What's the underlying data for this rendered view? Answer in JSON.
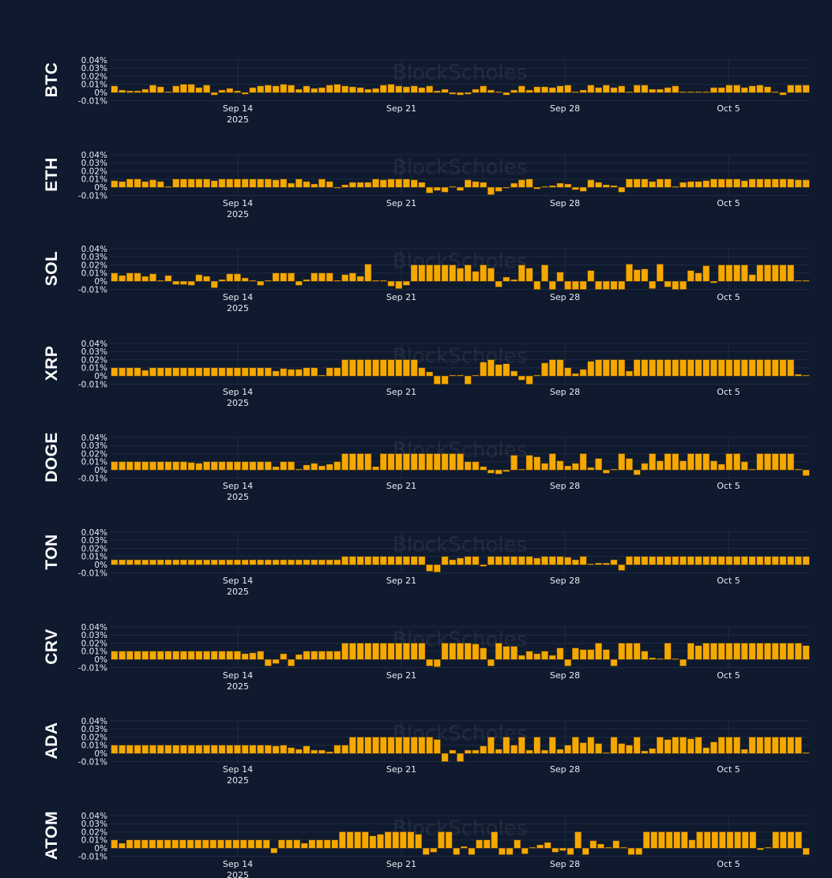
{
  "watermark": "BlockScholes",
  "colors": {
    "background": "#0f1a2e",
    "bar": "#f5a800",
    "bar_edge": "#7a5200",
    "grid": "#1e2b44",
    "text": "#e8ecf3"
  },
  "chart_data": [
    {
      "type": "bar",
      "asset": "BTC",
      "title": "BTC",
      "ylim": [
        -0.01,
        0.04
      ],
      "yticks": [
        "0.04%",
        "0.03%",
        "0.02%",
        "0.01%",
        "0%",
        "-0.01%"
      ],
      "xticks": [
        "Sep 14",
        "Sep 21",
        "Sep 28",
        "Oct 5"
      ],
      "xsub": "2025",
      "values": [
        0.008,
        0.003,
        0.002,
        0.002,
        0.004,
        0.009,
        0.007,
        0.001,
        0.008,
        0.01,
        0.01,
        0.006,
        0.009,
        -0.003,
        0.003,
        0.005,
        0.002,
        -0.002,
        0.006,
        0.008,
        0.009,
        0.008,
        0.01,
        0.009,
        0.004,
        0.008,
        0.005,
        0.006,
        0.009,
        0.01,
        0.008,
        0.007,
        0.006,
        0.004,
        0.005,
        0.009,
        0.01,
        0.008,
        0.007,
        0.008,
        0.006,
        0.008,
        0.002,
        0.004,
        -0.002,
        -0.003,
        -0.002,
        0.004,
        0.008,
        0.003,
        0.001,
        -0.003,
        0.003,
        0.008,
        0.003,
        0.007,
        0.007,
        0.006,
        0.008,
        0.009,
        0.001,
        0.003,
        0.009,
        0.006,
        0.009,
        0.006,
        0.008,
        0.001,
        0.009,
        0.009,
        0.004,
        0.004,
        0.006,
        0.008,
        0.001,
        0.001,
        0.001,
        0.001,
        0.006,
        0.006,
        0.009,
        0.009,
        0.006,
        0.008,
        0.009,
        0.007,
        0.001,
        -0.003,
        0.009,
        0.009,
        0.009
      ]
    },
    {
      "type": "bar",
      "asset": "ETH",
      "title": "ETH",
      "ylim": [
        -0.01,
        0.04
      ],
      "yticks": [
        "0.04%",
        "0.03%",
        "0.02%",
        "0.01%",
        "0%",
        "-0.01%"
      ],
      "xticks": [
        "Sep 14",
        "Sep 21",
        "Sep 28",
        "Oct 5"
      ],
      "xsub": "2025",
      "values": [
        0.008,
        0.007,
        0.01,
        0.01,
        0.007,
        0.009,
        0.007,
        0.001,
        0.01,
        0.01,
        0.01,
        0.01,
        0.01,
        0.008,
        0.01,
        0.01,
        0.01,
        0.01,
        0.01,
        0.01,
        0.01,
        0.009,
        0.01,
        0.005,
        0.01,
        0.007,
        0.004,
        0.01,
        0.007,
        -0.001,
        0.003,
        0.006,
        0.006,
        0.006,
        0.01,
        0.009,
        0.01,
        0.01,
        0.01,
        0.009,
        0.006,
        -0.007,
        -0.004,
        -0.006,
        0.001,
        -0.004,
        0.009,
        0.007,
        0.006,
        -0.009,
        -0.005,
        -0.001,
        0.005,
        0.009,
        0.01,
        -0.002,
        0.001,
        0.002,
        0.005,
        0.004,
        -0.003,
        -0.005,
        0.009,
        0.006,
        0.003,
        0.002,
        -0.006,
        0.01,
        0.01,
        0.01,
        0.007,
        0.01,
        0.01,
        0.0,
        0.006,
        0.007,
        0.007,
        0.008,
        0.01,
        0.01,
        0.01,
        0.01,
        0.008,
        0.01,
        0.01,
        0.01,
        0.01,
        0.01,
        0.01,
        0.009,
        0.009
      ]
    },
    {
      "type": "bar",
      "asset": "SOL",
      "title": "SOL",
      "ylim": [
        -0.01,
        0.04
      ],
      "yticks": [
        "0.04%",
        "0.03%",
        "0.02%",
        "0.01%",
        "0%",
        "-0.01%"
      ],
      "xticks": [
        "Sep 14",
        "Sep 21",
        "Sep 28",
        "Oct 5"
      ],
      "xsub": "2025",
      "values": [
        0.01,
        0.007,
        0.01,
        0.01,
        0.006,
        0.009,
        0.001,
        0.007,
        -0.004,
        -0.004,
        -0.005,
        0.008,
        0.006,
        -0.008,
        0.002,
        0.009,
        0.009,
        0.004,
        0.001,
        -0.005,
        0.001,
        0.01,
        0.01,
        0.01,
        -0.005,
        0.002,
        0.01,
        0.01,
        0.01,
        0.001,
        0.008,
        0.01,
        0.006,
        0.021,
        0.001,
        0.001,
        -0.006,
        -0.009,
        -0.005,
        0.02,
        0.02,
        0.02,
        0.02,
        0.02,
        0.02,
        0.016,
        0.02,
        0.012,
        0.02,
        0.016,
        -0.007,
        0.005,
        0.002,
        0.02,
        0.016,
        -0.01,
        0.02,
        -0.01,
        0.011,
        -0.01,
        -0.01,
        -0.01,
        0.013,
        -0.01,
        -0.01,
        -0.01,
        -0.01,
        0.021,
        0.014,
        0.015,
        -0.009,
        0.021,
        -0.007,
        -0.01,
        -0.01,
        0.013,
        0.01,
        0.019,
        -0.002,
        0.02,
        0.02,
        0.02,
        0.02,
        0.008,
        0.02,
        0.02,
        0.02,
        0.02,
        0.02,
        0.001,
        0.001
      ]
    },
    {
      "type": "bar",
      "asset": "XRP",
      "title": "XRP",
      "ylim": [
        -0.01,
        0.04
      ],
      "yticks": [
        "0.04%",
        "0.03%",
        "0.02%",
        "0.01%",
        "0%",
        "-0.01%"
      ],
      "xticks": [
        "Sep 14",
        "Sep 21",
        "Sep 28",
        "Oct 5"
      ],
      "xsub": "2025",
      "values": [
        0.01,
        0.01,
        0.01,
        0.01,
        0.007,
        0.01,
        0.01,
        0.01,
        0.01,
        0.01,
        0.01,
        0.01,
        0.01,
        0.01,
        0.01,
        0.01,
        0.01,
        0.01,
        0.01,
        0.01,
        0.01,
        0.006,
        0.009,
        0.008,
        0.008,
        0.01,
        0.01,
        0.001,
        0.01,
        0.01,
        0.02,
        0.02,
        0.02,
        0.02,
        0.02,
        0.02,
        0.02,
        0.02,
        0.02,
        0.02,
        0.01,
        0.005,
        -0.01,
        -0.01,
        0.001,
        0.001,
        -0.01,
        0.001,
        0.017,
        0.02,
        0.014,
        0.015,
        0.006,
        -0.005,
        -0.01,
        0.001,
        0.016,
        0.02,
        0.02,
        0.01,
        0.003,
        0.008,
        0.018,
        0.02,
        0.02,
        0.02,
        0.02,
        0.006,
        0.02,
        0.02,
        0.02,
        0.02,
        0.02,
        0.02,
        0.02,
        0.02,
        0.02,
        0.02,
        0.02,
        0.02,
        0.02,
        0.02,
        0.02,
        0.02,
        0.02,
        0.02,
        0.02,
        0.02,
        0.02,
        0.002,
        0.001
      ]
    },
    {
      "type": "bar",
      "asset": "DOGE",
      "title": "DOGE",
      "ylim": [
        -0.01,
        0.04
      ],
      "yticks": [
        "0.04%",
        "0.03%",
        "0.02%",
        "0.01%",
        "0%",
        "-0.01%"
      ],
      "xticks": [
        "Sep 14",
        "Sep 21",
        "Sep 28",
        "Oct 5"
      ],
      "xsub": "2025",
      "values": [
        0.01,
        0.01,
        0.01,
        0.01,
        0.01,
        0.01,
        0.01,
        0.01,
        0.01,
        0.01,
        0.009,
        0.008,
        0.01,
        0.01,
        0.01,
        0.01,
        0.01,
        0.01,
        0.01,
        0.01,
        0.01,
        0.004,
        0.01,
        0.01,
        0.001,
        0.006,
        0.008,
        0.005,
        0.007,
        0.01,
        0.02,
        0.02,
        0.02,
        0.02,
        0.004,
        0.02,
        0.02,
        0.02,
        0.02,
        0.02,
        0.02,
        0.02,
        0.02,
        0.02,
        0.02,
        0.02,
        0.01,
        0.01,
        0.004,
        -0.004,
        -0.005,
        -0.002,
        0.018,
        0.001,
        0.018,
        0.016,
        0.008,
        0.02,
        0.011,
        0.005,
        0.008,
        0.02,
        0.003,
        0.014,
        -0.004,
        0.001,
        0.02,
        0.014,
        -0.006,
        0.008,
        0.02,
        0.011,
        0.02,
        0.02,
        0.011,
        0.02,
        0.02,
        0.02,
        0.011,
        0.007,
        0.02,
        0.02,
        0.01,
        0.001,
        0.02,
        0.02,
        0.02,
        0.02,
        0.02,
        0.001,
        -0.007
      ]
    },
    {
      "type": "bar",
      "asset": "TON",
      "title": "TON",
      "ylim": [
        -0.01,
        0.04
      ],
      "yticks": [
        "0.04%",
        "0.03%",
        "0.02%",
        "0.01%",
        "0%",
        "-0.01%"
      ],
      "xticks": [
        "Sep 14",
        "Sep 21",
        "Sep 28",
        "Oct 5"
      ],
      "xsub": "2025",
      "values": [
        0.006,
        0.006,
        0.006,
        0.006,
        0.006,
        0.006,
        0.006,
        0.006,
        0.006,
        0.006,
        0.006,
        0.006,
        0.006,
        0.006,
        0.006,
        0.006,
        0.006,
        0.006,
        0.006,
        0.006,
        0.006,
        0.006,
        0.006,
        0.006,
        0.006,
        0.006,
        0.006,
        0.006,
        0.006,
        0.006,
        0.01,
        0.01,
        0.01,
        0.01,
        0.01,
        0.01,
        0.01,
        0.01,
        0.01,
        0.01,
        0.01,
        -0.008,
        -0.009,
        0.01,
        0.006,
        0.008,
        0.01,
        0.01,
        -0.002,
        0.01,
        0.01,
        0.01,
        0.01,
        0.01,
        0.01,
        0.008,
        0.01,
        0.01,
        0.01,
        0.009,
        0.006,
        0.01,
        0.001,
        0.002,
        0.002,
        0.006,
        -0.007,
        0.01,
        0.01,
        0.01,
        0.01,
        0.01,
        0.01,
        0.01,
        0.01,
        0.01,
        0.01,
        0.01,
        0.01,
        0.01,
        0.01,
        0.01,
        0.01,
        0.01,
        0.01,
        0.01,
        0.01,
        0.01,
        0.01,
        0.01,
        0.01
      ]
    },
    {
      "type": "bar",
      "asset": "CRV",
      "title": "CRV",
      "ylim": [
        -0.01,
        0.04
      ],
      "yticks": [
        "0.04%",
        "0.03%",
        "0.02%",
        "0.01%",
        "0%",
        "-0.01%"
      ],
      "xticks": [
        "Sep 14",
        "Sep 21",
        "Sep 28",
        "Oct 5"
      ],
      "xsub": "2025",
      "values": [
        0.01,
        0.01,
        0.01,
        0.01,
        0.01,
        0.01,
        0.01,
        0.01,
        0.01,
        0.01,
        0.01,
        0.01,
        0.01,
        0.01,
        0.01,
        0.01,
        0.01,
        0.007,
        0.008,
        0.01,
        -0.008,
        -0.005,
        0.007,
        -0.008,
        0.006,
        0.01,
        0.01,
        0.01,
        0.01,
        0.01,
        0.02,
        0.02,
        0.02,
        0.02,
        0.02,
        0.02,
        0.02,
        0.02,
        0.02,
        0.02,
        0.02,
        -0.008,
        -0.009,
        0.02,
        0.02,
        0.02,
        0.02,
        0.019,
        0.014,
        -0.008,
        0.02,
        0.016,
        0.016,
        0.005,
        0.01,
        0.007,
        0.01,
        0.005,
        0.014,
        -0.008,
        0.014,
        0.012,
        0.012,
        0.02,
        0.012,
        -0.008,
        0.02,
        0.02,
        0.02,
        0.01,
        0.002,
        0.001,
        0.02,
        0.001,
        -0.008,
        0.02,
        0.017,
        0.02,
        0.02,
        0.02,
        0.02,
        0.02,
        0.02,
        0.02,
        0.02,
        0.02,
        0.02,
        0.02,
        0.02,
        0.02,
        0.017
      ]
    },
    {
      "type": "bar",
      "asset": "ADA",
      "title": "ADA",
      "ylim": [
        -0.01,
        0.04
      ],
      "yticks": [
        "0.04%",
        "0.03%",
        "0.02%",
        "0.01%",
        "0%",
        "-0.01%"
      ],
      "xticks": [
        "Sep 14",
        "Sep 21",
        "Sep 28",
        "Oct 5"
      ],
      "xsub": "2025",
      "values": [
        0.01,
        0.01,
        0.01,
        0.01,
        0.01,
        0.01,
        0.01,
        0.01,
        0.01,
        0.01,
        0.01,
        0.01,
        0.01,
        0.01,
        0.01,
        0.01,
        0.01,
        0.01,
        0.01,
        0.01,
        0.01,
        0.009,
        0.01,
        0.007,
        0.005,
        0.009,
        0.004,
        0.004,
        0.002,
        0.01,
        0.01,
        0.02,
        0.02,
        0.02,
        0.02,
        0.02,
        0.02,
        0.02,
        0.02,
        0.02,
        0.02,
        0.02,
        0.017,
        -0.01,
        0.004,
        -0.01,
        0.004,
        0.004,
        0.009,
        0.02,
        0.005,
        0.02,
        0.01,
        0.02,
        0.004,
        0.02,
        0.004,
        0.02,
        0.005,
        0.01,
        0.02,
        0.013,
        0.02,
        0.012,
        0.001,
        0.02,
        0.012,
        0.01,
        0.02,
        0.003,
        0.006,
        0.02,
        0.017,
        0.02,
        0.02,
        0.018,
        0.02,
        0.007,
        0.014,
        0.02,
        0.02,
        0.02,
        0.005,
        0.02,
        0.02,
        0.02,
        0.02,
        0.02,
        0.02,
        0.02,
        0.001
      ]
    },
    {
      "type": "bar",
      "asset": "ATOM",
      "title": "ATOM",
      "ylim": [
        -0.01,
        0.04
      ],
      "yticks": [
        "0.04%",
        "0.03%",
        "0.02%",
        "0.01%",
        "0%",
        "-0.01%"
      ],
      "xticks": [
        "Sep 14",
        "Sep 21",
        "Sep 28",
        "Oct 5"
      ],
      "xsub": "2025",
      "values": [
        0.01,
        0.006,
        0.01,
        0.01,
        0.01,
        0.01,
        0.01,
        0.01,
        0.01,
        0.01,
        0.01,
        0.01,
        0.01,
        0.01,
        0.01,
        0.01,
        0.01,
        0.01,
        0.01,
        0.01,
        0.01,
        -0.006,
        0.01,
        0.01,
        0.01,
        0.006,
        0.01,
        0.01,
        0.01,
        0.01,
        0.02,
        0.02,
        0.02,
        0.02,
        0.015,
        0.017,
        0.02,
        0.02,
        0.02,
        0.02,
        0.017,
        -0.008,
        -0.005,
        0.02,
        0.02,
        -0.008,
        0.002,
        -0.008,
        0.01,
        0.01,
        0.02,
        -0.008,
        -0.008,
        0.01,
        -0.007,
        0.001,
        0.004,
        0.007,
        -0.005,
        -0.003,
        -0.008,
        0.02,
        -0.008,
        0.009,
        0.005,
        0.001,
        0.009,
        0.001,
        -0.008,
        -0.008,
        0.02,
        0.02,
        0.02,
        0.02,
        0.02,
        0.02,
        0.01,
        0.02,
        0.02,
        0.02,
        0.02,
        0.02,
        0.02,
        0.02,
        0.02,
        -0.002,
        0.001,
        0.02,
        0.02,
        0.02,
        0.02,
        -0.008
      ]
    }
  ]
}
